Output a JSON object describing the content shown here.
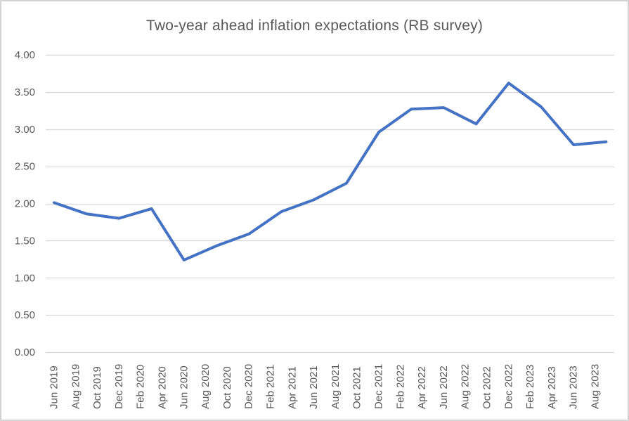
{
  "frame": {
    "background_color": "#FFFFFF",
    "border_color": "#D3D3D6"
  },
  "chart_data": {
    "type": "line",
    "title": "Two-year ahead inflation expectations (RB survey)",
    "xlabel": "",
    "ylabel": "",
    "ylim": [
      0.0,
      4.0
    ],
    "y_tick_step": 0.5,
    "grid": true,
    "legend": "none",
    "series": [
      {
        "name": "Two-year ahead inflation expectations (RB survey)",
        "points": [
          {
            "date": "Jun 2019",
            "value": 2.01
          },
          {
            "date": "Sep 2019",
            "value": 1.86
          },
          {
            "date": "Dec 2019",
            "value": 1.8
          },
          {
            "date": "Mar 2020",
            "value": 1.93
          },
          {
            "date": "Jun 2020",
            "value": 1.24
          },
          {
            "date": "Sep 2020",
            "value": 1.43
          },
          {
            "date": "Dec 2020",
            "value": 1.59
          },
          {
            "date": "Mar 2021",
            "value": 1.89
          },
          {
            "date": "Jun 2021",
            "value": 2.05
          },
          {
            "date": "Sep 2021",
            "value": 2.27
          },
          {
            "date": "Dec 2021",
            "value": 2.96
          },
          {
            "date": "Mar 2022",
            "value": 3.27
          },
          {
            "date": "Jun 2022",
            "value": 3.29
          },
          {
            "date": "Sep 2022",
            "value": 3.07
          },
          {
            "date": "Dec 2022",
            "value": 3.62
          },
          {
            "date": "Mar 2023",
            "value": 3.3
          },
          {
            "date": "Jun 2023",
            "value": 2.79
          },
          {
            "date": "Sep 2023",
            "value": 2.83
          }
        ]
      }
    ],
    "x_tick_labels": [
      "Jun 2019",
      "Aug 2019",
      "Oct 2019",
      "Dec 2019",
      "Feb 2020",
      "Apr 2020",
      "Jun 2020",
      "Aug 2020",
      "Oct 2020",
      "Dec 2020",
      "Feb 2021",
      "Apr 2021",
      "Jun 2021",
      "Aug 2021",
      "Oct 2021",
      "Dec 2021",
      "Feb 2022",
      "Apr 2022",
      "Jun 2022",
      "Aug 2022",
      "Oct 2022",
      "Dec 2022",
      "Feb 2023",
      "Apr 2023",
      "Jun 2023",
      "Aug 2023"
    ],
    "y_tick_labels": [
      "0.00",
      "0.50",
      "1.00",
      "1.50",
      "2.00",
      "2.50",
      "3.00",
      "3.50",
      "4.00"
    ],
    "colors": {
      "line": "#4472C4",
      "gridline": "#D9D9D9",
      "axis_text": "#595959",
      "title_text": "#595959"
    }
  }
}
